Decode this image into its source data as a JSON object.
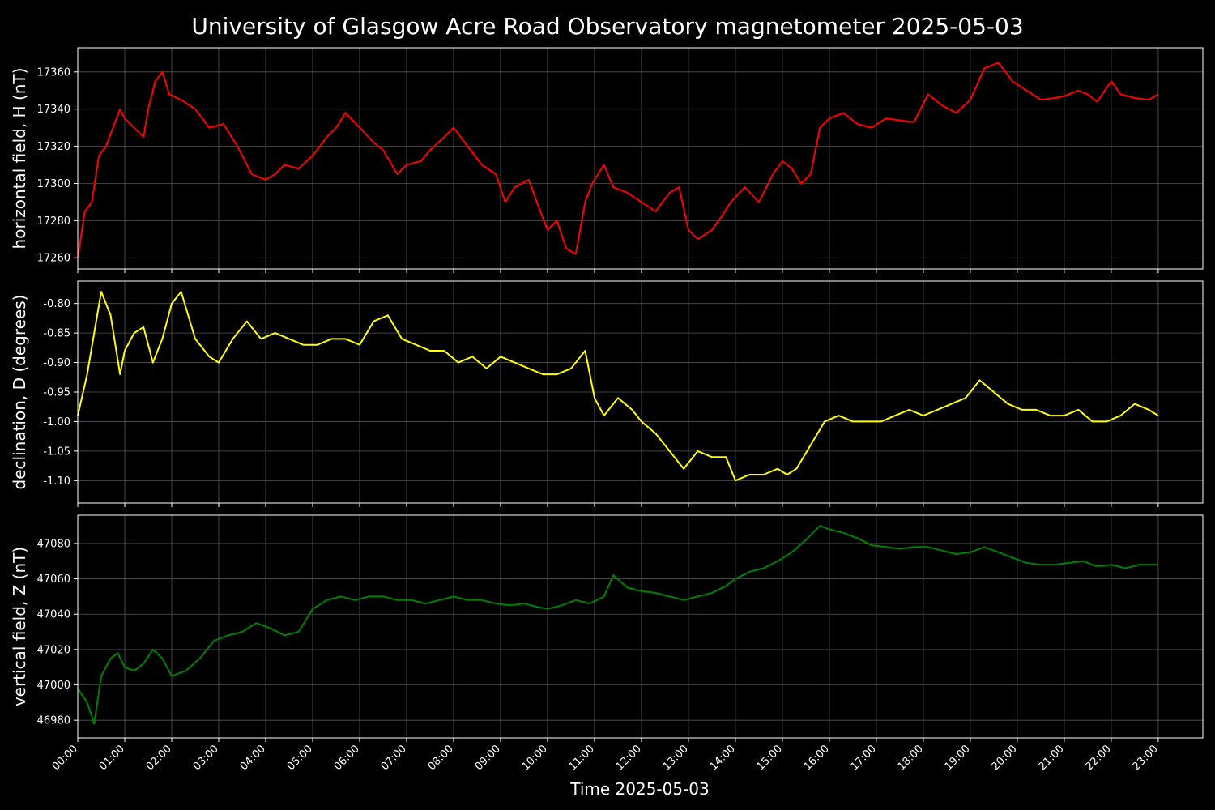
{
  "chart_data": {
    "title": "University of Glasgow Acre Road Observatory magnetometer 2025-05-03",
    "xlabel": "Time 2025-05-03",
    "x_ticks": [
      "00:00",
      "01:00",
      "02:00",
      "03:00",
      "04:00",
      "05:00",
      "06:00",
      "07:00",
      "08:00",
      "09:00",
      "10:00",
      "11:00",
      "12:00",
      "13:00",
      "14:00",
      "15:00",
      "16:00",
      "17:00",
      "18:00",
      "19:00",
      "20:00",
      "21:00",
      "22:00",
      "23:00"
    ],
    "xlim_hours": [
      0,
      23.95
    ],
    "grid": true,
    "panels": [
      {
        "type": "line",
        "ylabel": "horizontal field, H (nT)",
        "color": "#ff0000",
        "ylim": [
          17254,
          17373
        ],
        "y_ticks": [
          17260,
          17280,
          17300,
          17320,
          17340,
          17360
        ],
        "x_hours": [
          0,
          0.15,
          0.3,
          0.45,
          0.6,
          0.75,
          0.9,
          1.0,
          1.2,
          1.4,
          1.5,
          1.65,
          1.8,
          1.95,
          2.2,
          2.5,
          2.8,
          3.1,
          3.4,
          3.7,
          4.0,
          4.2,
          4.4,
          4.7,
          5.0,
          5.3,
          5.5,
          5.7,
          6.0,
          6.3,
          6.5,
          6.8,
          7.0,
          7.3,
          7.5,
          7.8,
          8.0,
          8.3,
          8.6,
          8.9,
          9.1,
          9.3,
          9.6,
          9.8,
          10.0,
          10.2,
          10.4,
          10.6,
          10.8,
          10.95,
          11.2,
          11.4,
          11.7,
          12.0,
          12.3,
          12.6,
          12.8,
          13.0,
          13.2,
          13.5,
          13.7,
          13.9,
          14.2,
          14.5,
          14.8,
          15.0,
          15.2,
          15.4,
          15.6,
          15.8,
          16.0,
          16.3,
          16.6,
          16.9,
          17.2,
          17.5,
          17.8,
          18.1,
          18.4,
          18.7,
          19.0,
          19.3,
          19.6,
          19.9,
          20.2,
          20.5,
          20.8,
          21.0,
          21.3,
          21.5,
          21.7,
          22.0,
          22.2,
          22.5,
          22.8,
          23.0
        ],
        "values": [
          17260,
          17285,
          17290,
          17315,
          17320,
          17330,
          17340,
          17335,
          17330,
          17325,
          17340,
          17355,
          17360,
          17348,
          17345,
          17340,
          17330,
          17332,
          17320,
          17305,
          17302,
          17305,
          17310,
          17308,
          17315,
          17325,
          17330,
          17338,
          17330,
          17322,
          17318,
          17305,
          17310,
          17312,
          17318,
          17325,
          17330,
          17320,
          17310,
          17305,
          17290,
          17298,
          17302,
          17288,
          17275,
          17280,
          17265,
          17262,
          17290,
          17300,
          17310,
          17298,
          17295,
          17290,
          17285,
          17295,
          17298,
          17275,
          17270,
          17275,
          17282,
          17290,
          17298,
          17290,
          17305,
          17312,
          17308,
          17300,
          17305,
          17330,
          17335,
          17338,
          17332,
          17330,
          17335,
          17334,
          17333,
          17348,
          17342,
          17338,
          17345,
          17362,
          17365,
          17355,
          17350,
          17345,
          17346,
          17347,
          17350,
          17348,
          17344,
          17355,
          17348,
          17346,
          17345,
          17348
        ]
      },
      {
        "type": "line",
        "ylabel": "declination, D (degrees)",
        "color": "#ffff00",
        "ylim": [
          -1.138,
          -0.762
        ],
        "y_ticks": [
          -1.1,
          -1.05,
          -1.0,
          -0.95,
          -0.9,
          -0.85,
          -0.8
        ],
        "y_tick_labels": [
          "-1.10",
          "-1.05",
          "-1.00",
          "-0.95",
          "-0.90",
          "-0.85",
          "-0.80"
        ],
        "x_hours": [
          0,
          0.2,
          0.35,
          0.5,
          0.7,
          0.9,
          1.0,
          1.2,
          1.4,
          1.6,
          1.8,
          2.0,
          2.2,
          2.5,
          2.8,
          3.0,
          3.3,
          3.6,
          3.9,
          4.2,
          4.5,
          4.8,
          5.1,
          5.4,
          5.7,
          6.0,
          6.3,
          6.6,
          6.9,
          7.2,
          7.5,
          7.8,
          8.1,
          8.4,
          8.7,
          9.0,
          9.3,
          9.6,
          9.9,
          10.2,
          10.5,
          10.8,
          11.0,
          11.2,
          11.5,
          11.8,
          12.0,
          12.3,
          12.6,
          12.9,
          13.2,
          13.5,
          13.8,
          14.0,
          14.3,
          14.6,
          14.9,
          15.1,
          15.3,
          15.6,
          15.9,
          16.2,
          16.5,
          16.8,
          17.1,
          17.4,
          17.7,
          18.0,
          18.3,
          18.6,
          18.9,
          19.2,
          19.5,
          19.8,
          20.1,
          20.4,
          20.7,
          21.0,
          21.3,
          21.6,
          21.9,
          22.2,
          22.5,
          22.8,
          23.0
        ],
        "values": [
          -0.99,
          -0.92,
          -0.85,
          -0.78,
          -0.82,
          -0.92,
          -0.88,
          -0.85,
          -0.84,
          -0.9,
          -0.86,
          -0.8,
          -0.78,
          -0.86,
          -0.89,
          -0.9,
          -0.86,
          -0.83,
          -0.86,
          -0.85,
          -0.86,
          -0.87,
          -0.87,
          -0.86,
          -0.86,
          -0.87,
          -0.83,
          -0.82,
          -0.86,
          -0.87,
          -0.88,
          -0.88,
          -0.9,
          -0.89,
          -0.91,
          -0.89,
          -0.9,
          -0.91,
          -0.92,
          -0.92,
          -0.91,
          -0.88,
          -0.96,
          -0.99,
          -0.96,
          -0.98,
          -1.0,
          -1.02,
          -1.05,
          -1.08,
          -1.05,
          -1.06,
          -1.06,
          -1.1,
          -1.09,
          -1.09,
          -1.08,
          -1.09,
          -1.08,
          -1.04,
          -1.0,
          -0.99,
          -1.0,
          -1.0,
          -1.0,
          -0.99,
          -0.98,
          -0.99,
          -0.98,
          -0.97,
          -0.96,
          -0.93,
          -0.95,
          -0.97,
          -0.98,
          -0.98,
          -0.99,
          -0.99,
          -0.98,
          -1.0,
          -1.0,
          -0.99,
          -0.97,
          -0.98,
          -0.99
        ]
      },
      {
        "type": "line",
        "ylabel": "vertical field, Z (nT)",
        "color": "#008000",
        "ylim": [
          46970,
          47096
        ],
        "y_ticks": [
          46980,
          47000,
          47020,
          47040,
          47060,
          47080
        ],
        "x_hours": [
          0,
          0.2,
          0.35,
          0.5,
          0.7,
          0.85,
          1.0,
          1.2,
          1.4,
          1.6,
          1.8,
          2.0,
          2.3,
          2.6,
          2.9,
          3.2,
          3.5,
          3.8,
          4.1,
          4.4,
          4.7,
          5.0,
          5.3,
          5.6,
          5.9,
          6.2,
          6.5,
          6.8,
          7.1,
          7.4,
          7.7,
          8.0,
          8.3,
          8.6,
          8.9,
          9.2,
          9.5,
          9.8,
          10.0,
          10.3,
          10.6,
          10.9,
          11.2,
          11.4,
          11.7,
          12.0,
          12.3,
          12.6,
          12.9,
          13.2,
          13.5,
          13.8,
          14.0,
          14.3,
          14.6,
          14.9,
          15.2,
          15.5,
          15.8,
          16.0,
          16.3,
          16.6,
          16.9,
          17.2,
          17.5,
          17.8,
          18.1,
          18.4,
          18.7,
          19.0,
          19.3,
          19.6,
          19.9,
          20.2,
          20.5,
          20.8,
          21.1,
          21.4,
          21.7,
          22.0,
          22.3,
          22.6,
          23.0
        ],
        "values": [
          46998,
          46990,
          46978,
          47005,
          47015,
          47018,
          47010,
          47008,
          47012,
          47020,
          47015,
          47005,
          47008,
          47015,
          47025,
          47028,
          47030,
          47035,
          47032,
          47028,
          47030,
          47043,
          47048,
          47050,
          47048,
          47050,
          47050,
          47048,
          47048,
          47046,
          47048,
          47050,
          47048,
          47048,
          47046,
          47045,
          47046,
          47044,
          47043,
          47045,
          47048,
          47046,
          47050,
          47062,
          47055,
          47053,
          47052,
          47050,
          47048,
          47050,
          47052,
          47056,
          47060,
          47064,
          47066,
          47070,
          47075,
          47082,
          47090,
          47088,
          47086,
          47083,
          47079,
          47078,
          47077,
          47078,
          47078,
          47076,
          47074,
          47075,
          47078,
          47075,
          47072,
          47069,
          47068,
          47068,
          47069,
          47070,
          47067,
          47068,
          47066,
          47068,
          47068
        ]
      }
    ]
  }
}
